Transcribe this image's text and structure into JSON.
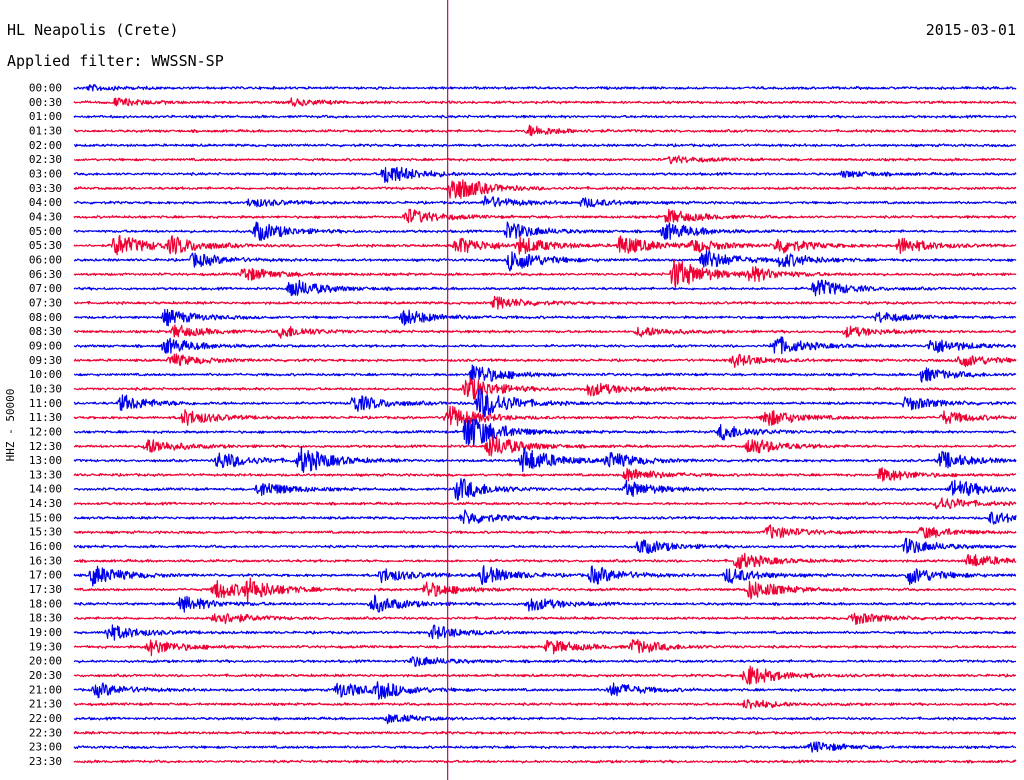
{
  "header": {
    "station": "HL Neapolis (Crete)",
    "date": "2015-03-01",
    "filter_label": "Applied filter: WWSSN-SP"
  },
  "chart_data": {
    "type": "helicorder",
    "title": "HL Neapolis (Crete)",
    "ylabel": "HHZ - 50000",
    "row_labels": [
      "00:00",
      "00:30",
      "01:00",
      "01:30",
      "02:00",
      "02:30",
      "03:00",
      "03:30",
      "04:00",
      "04:30",
      "05:00",
      "05:30",
      "06:00",
      "06:30",
      "07:00",
      "07:30",
      "08:00",
      "08:30",
      "09:00",
      "09:30",
      "10:00",
      "10:30",
      "11:00",
      "11:30",
      "12:00",
      "12:30",
      "13:00",
      "13:30",
      "14:00",
      "14:30",
      "15:00",
      "15:30",
      "16:00",
      "16:30",
      "17:00",
      "17:30",
      "18:00",
      "18:30",
      "19:00",
      "19:30",
      "20:00",
      "20:30",
      "21:00",
      "21:30",
      "22:00",
      "22:30",
      "23:00",
      "23:30"
    ],
    "row_minutes": 30,
    "series_colors": [
      "#0000ee",
      "#ee0033"
    ],
    "marker_color": "#cc0066",
    "marker_minute": 11.9,
    "noise_level": 0.12,
    "events": [
      {
        "row": 0,
        "minute": 0.5,
        "amp": 0.3
      },
      {
        "row": 1,
        "minute": 1.3,
        "amp": 0.45
      },
      {
        "row": 1,
        "minute": 6.9,
        "amp": 0.4
      },
      {
        "row": 3,
        "minute": 14.5,
        "amp": 0.6
      },
      {
        "row": 5,
        "minute": 19,
        "amp": 0.4
      },
      {
        "row": 6,
        "minute": 9.9,
        "amp": 1.2
      },
      {
        "row": 6,
        "minute": 24.5,
        "amp": 0.35
      },
      {
        "row": 7,
        "minute": 12.0,
        "amp": 1.6
      },
      {
        "row": 8,
        "minute": 13.1,
        "amp": 0.7
      },
      {
        "row": 8,
        "minute": 16.2,
        "amp": 0.5
      },
      {
        "row": 8,
        "minute": 5.6,
        "amp": 0.5
      },
      {
        "row": 9,
        "minute": 10.6,
        "amp": 0.9
      },
      {
        "row": 9,
        "minute": 18.9,
        "amp": 0.8
      },
      {
        "row": 10,
        "minute": 5.8,
        "amp": 1.1
      },
      {
        "row": 10,
        "minute": 13.8,
        "amp": 1.0
      },
      {
        "row": 10,
        "minute": 18.8,
        "amp": 1.0
      },
      {
        "row": 11,
        "minute": 1.3,
        "amp": 1.3
      },
      {
        "row": 11,
        "minute": 3.1,
        "amp": 0.9
      },
      {
        "row": 11,
        "minute": 12.2,
        "amp": 1.0
      },
      {
        "row": 11,
        "minute": 14.2,
        "amp": 0.9
      },
      {
        "row": 11,
        "minute": 17.4,
        "amp": 1.1
      },
      {
        "row": 11,
        "minute": 19.7,
        "amp": 0.7
      },
      {
        "row": 11,
        "minute": 22.4,
        "amp": 0.9
      },
      {
        "row": 11,
        "minute": 26.3,
        "amp": 0.9
      },
      {
        "row": 12,
        "minute": 3.8,
        "amp": 0.8
      },
      {
        "row": 12,
        "minute": 13.9,
        "amp": 1.3
      },
      {
        "row": 12,
        "minute": 20.0,
        "amp": 1.2
      },
      {
        "row": 12,
        "minute": 22.5,
        "amp": 0.8
      },
      {
        "row": 13,
        "minute": 5.4,
        "amp": 0.8
      },
      {
        "row": 13,
        "minute": 19.1,
        "amp": 1.8
      },
      {
        "row": 13,
        "minute": 21.5,
        "amp": 0.8
      },
      {
        "row": 14,
        "minute": 6.9,
        "amp": 1.1
      },
      {
        "row": 14,
        "minute": 23.6,
        "amp": 1.1
      },
      {
        "row": 15,
        "minute": 13.4,
        "amp": 0.7
      },
      {
        "row": 16,
        "minute": 2.9,
        "amp": 0.9
      },
      {
        "row": 16,
        "minute": 10.5,
        "amp": 0.9
      },
      {
        "row": 16,
        "minute": 25.6,
        "amp": 0.6
      },
      {
        "row": 17,
        "minute": 3.2,
        "amp": 0.7
      },
      {
        "row": 17,
        "minute": 6.6,
        "amp": 0.7
      },
      {
        "row": 17,
        "minute": 18.0,
        "amp": 0.6
      },
      {
        "row": 17,
        "minute": 24.6,
        "amp": 0.6
      },
      {
        "row": 18,
        "minute": 2.9,
        "amp": 0.9
      },
      {
        "row": 18,
        "minute": 22.3,
        "amp": 1.1
      },
      {
        "row": 18,
        "minute": 27.3,
        "amp": 0.9
      },
      {
        "row": 19,
        "minute": 3.1,
        "amp": 0.7
      },
      {
        "row": 19,
        "minute": 21.0,
        "amp": 0.7
      },
      {
        "row": 19,
        "minute": 28.2,
        "amp": 0.8
      },
      {
        "row": 20,
        "minute": 12.7,
        "amp": 1.2
      },
      {
        "row": 20,
        "minute": 27.0,
        "amp": 0.8
      },
      {
        "row": 21,
        "minute": 12.5,
        "amp": 1.4
      },
      {
        "row": 21,
        "minute": 16.4,
        "amp": 0.8
      },
      {
        "row": 22,
        "minute": 1.5,
        "amp": 0.9
      },
      {
        "row": 22,
        "minute": 8.9,
        "amp": 1.0
      },
      {
        "row": 22,
        "minute": 12.9,
        "amp": 1.8
      },
      {
        "row": 22,
        "minute": 26.5,
        "amp": 0.8
      },
      {
        "row": 23,
        "minute": 3.5,
        "amp": 0.9
      },
      {
        "row": 23,
        "minute": 11.9,
        "amp": 1.4
      },
      {
        "row": 23,
        "minute": 22.0,
        "amp": 1.0
      },
      {
        "row": 23,
        "minute": 27.7,
        "amp": 0.7
      },
      {
        "row": 24,
        "minute": 12.5,
        "amp": 2.2
      },
      {
        "row": 24,
        "minute": 20.6,
        "amp": 0.9
      },
      {
        "row": 25,
        "minute": 2.3,
        "amp": 0.9
      },
      {
        "row": 25,
        "minute": 13.2,
        "amp": 1.4
      },
      {
        "row": 25,
        "minute": 21.5,
        "amp": 1.0
      },
      {
        "row": 26,
        "minute": 4.6,
        "amp": 1.0
      },
      {
        "row": 26,
        "minute": 7.2,
        "amp": 1.5
      },
      {
        "row": 26,
        "minute": 14.3,
        "amp": 1.5
      },
      {
        "row": 26,
        "minute": 17.0,
        "amp": 0.9
      },
      {
        "row": 26,
        "minute": 27.6,
        "amp": 1.0
      },
      {
        "row": 27,
        "minute": 17.6,
        "amp": 0.8
      },
      {
        "row": 27,
        "minute": 25.7,
        "amp": 0.8
      },
      {
        "row": 28,
        "minute": 5.9,
        "amp": 0.9
      },
      {
        "row": 28,
        "minute": 12.2,
        "amp": 1.3
      },
      {
        "row": 28,
        "minute": 17.6,
        "amp": 0.9
      },
      {
        "row": 28,
        "minute": 28.0,
        "amp": 1.1
      },
      {
        "row": 29,
        "minute": 27.5,
        "amp": 0.8
      },
      {
        "row": 30,
        "minute": 12.4,
        "amp": 0.8
      },
      {
        "row": 30,
        "minute": 29.2,
        "amp": 0.7
      },
      {
        "row": 31,
        "minute": 22.1,
        "amp": 0.8
      },
      {
        "row": 31,
        "minute": 27.0,
        "amp": 0.7
      },
      {
        "row": 32,
        "minute": 18.0,
        "amp": 0.9
      },
      {
        "row": 32,
        "minute": 26.5,
        "amp": 0.9
      },
      {
        "row": 33,
        "minute": 21.1,
        "amp": 1.0
      },
      {
        "row": 33,
        "minute": 28.5,
        "amp": 0.8
      },
      {
        "row": 34,
        "minute": 0.6,
        "amp": 1.1
      },
      {
        "row": 34,
        "minute": 9.8,
        "amp": 0.8
      },
      {
        "row": 34,
        "minute": 13.0,
        "amp": 1.0
      },
      {
        "row": 34,
        "minute": 16.5,
        "amp": 1.0
      },
      {
        "row": 34,
        "minute": 20.8,
        "amp": 0.9
      },
      {
        "row": 34,
        "minute": 26.6,
        "amp": 1.0
      },
      {
        "row": 35,
        "minute": 4.5,
        "amp": 1.1
      },
      {
        "row": 35,
        "minute": 5.5,
        "amp": 1.0
      },
      {
        "row": 35,
        "minute": 11.2,
        "amp": 0.9
      },
      {
        "row": 35,
        "minute": 21.5,
        "amp": 1.1
      },
      {
        "row": 36,
        "minute": 3.4,
        "amp": 0.9
      },
      {
        "row": 36,
        "minute": 9.5,
        "amp": 1.0
      },
      {
        "row": 36,
        "minute": 14.5,
        "amp": 0.8
      },
      {
        "row": 37,
        "minute": 4.5,
        "amp": 0.8
      },
      {
        "row": 37,
        "minute": 24.8,
        "amp": 0.7
      },
      {
        "row": 38,
        "minute": 1.1,
        "amp": 0.9
      },
      {
        "row": 38,
        "minute": 11.4,
        "amp": 0.8
      },
      {
        "row": 39,
        "minute": 2.4,
        "amp": 0.9
      },
      {
        "row": 39,
        "minute": 15.1,
        "amp": 0.8
      },
      {
        "row": 39,
        "minute": 17.8,
        "amp": 0.8
      },
      {
        "row": 40,
        "minute": 10.8,
        "amp": 0.6
      },
      {
        "row": 41,
        "minute": 21.4,
        "amp": 1.2
      },
      {
        "row": 42,
        "minute": 0.7,
        "amp": 0.8
      },
      {
        "row": 42,
        "minute": 8.4,
        "amp": 0.9
      },
      {
        "row": 42,
        "minute": 9.7,
        "amp": 0.8
      },
      {
        "row": 42,
        "minute": 17.1,
        "amp": 0.8
      },
      {
        "row": 43,
        "minute": 21.4,
        "amp": 0.6
      },
      {
        "row": 44,
        "minute": 10.0,
        "amp": 0.5
      },
      {
        "row": 46,
        "minute": 23.5,
        "amp": 0.6
      }
    ]
  }
}
